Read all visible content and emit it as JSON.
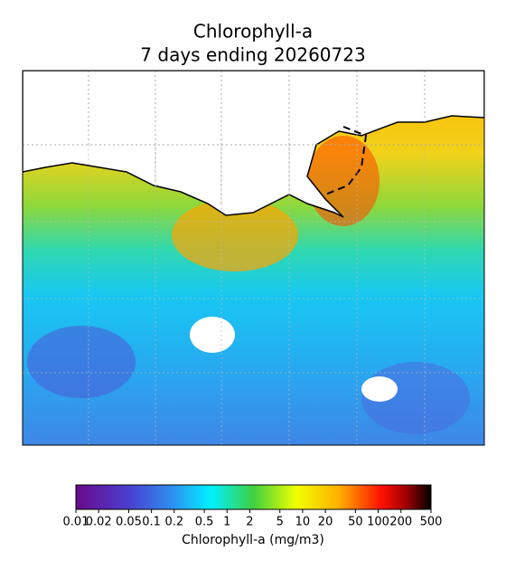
{
  "map": {
    "title": [
      "Chlorophyll-a",
      "7 days ending 20260723"
    ],
    "colorbar": {
      "label": "Chlorophyll-a (mg/m3)",
      "log": true,
      "lim": [
        0.01,
        500
      ],
      "ticks": [
        0.01,
        0.02,
        0.05,
        0.1,
        0.2,
        0.5,
        1,
        2,
        5,
        10,
        20,
        50,
        100,
        200,
        500
      ]
    }
  }
}
